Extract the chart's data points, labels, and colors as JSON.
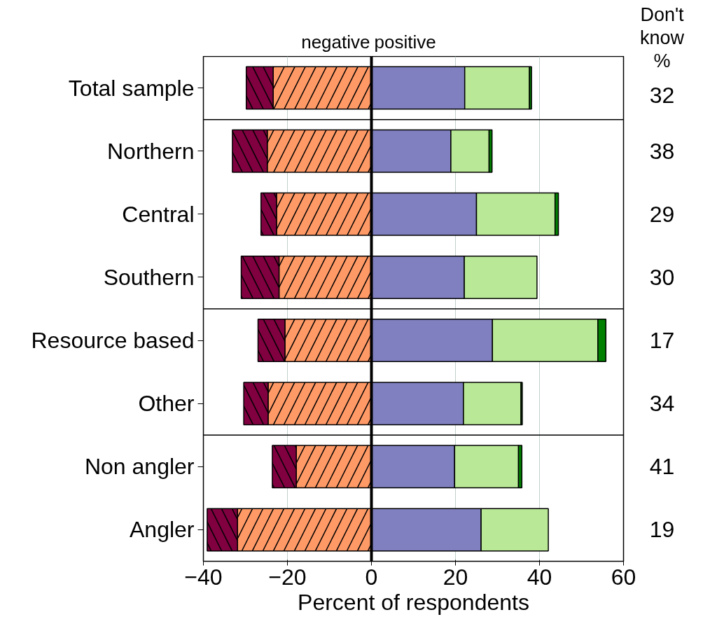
{
  "chart_data": {
    "type": "bar",
    "orientation": "horizontal",
    "stacked": true,
    "categories": [
      "Total sample",
      "Northern",
      "Central",
      "Southern",
      "Resource based",
      "Other",
      "Non angler",
      "Angler"
    ],
    "series": [
      {
        "color": "#ff9966",
        "values": [
          -23.4,
          -24.8,
          -22.6,
          -22.0,
          -20.6,
          -24.6,
          -17.9,
          -31.9
        ]
      },
      {
        "color": "#800040",
        "values": [
          -6.4,
          -8.3,
          -3.7,
          -9.0,
          -6.4,
          -5.8,
          -5.7,
          -7.2
        ]
      },
      {
        "color": "#8080c0",
        "values": [
          22.2,
          18.9,
          25.0,
          22.1,
          28.8,
          21.9,
          19.8,
          26.1
        ]
      },
      {
        "color": "#b9e996",
        "values": [
          15.4,
          9.1,
          18.7,
          17.3,
          25.1,
          13.7,
          15.2,
          16.0
        ]
      },
      {
        "color": "#008000",
        "values": [
          0.5,
          0.7,
          0.8,
          null,
          1.9,
          0.3,
          0.8,
          null
        ]
      }
    ],
    "xlim": [
      -40,
      60
    ],
    "xticks": [
      -40,
      -20,
      0,
      20,
      40,
      60
    ],
    "xlabel": "Percent of respondents",
    "grid": "x",
    "ref_lines": [
      {
        "axis": "x",
        "value": 0,
        "color": "#000000"
      }
    ],
    "annotations": [
      "negative",
      "positive",
      "Don't\nknow\n%",
      "32",
      "38",
      "29",
      "30",
      "17",
      "34",
      "41",
      "19"
    ]
  }
}
